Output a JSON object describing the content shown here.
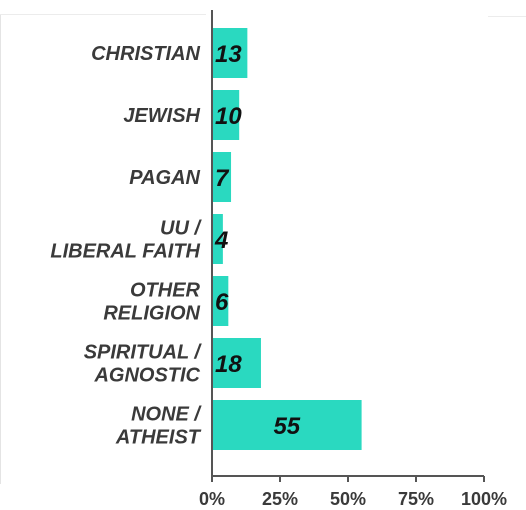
{
  "chart_data": {
    "type": "bar",
    "orientation": "horizontal",
    "categories": [
      [
        "CHRISTIAN"
      ],
      [
        "JEWISH"
      ],
      [
        "PAGAN"
      ],
      [
        "UU /",
        "LIBERAL FAITH"
      ],
      [
        "OTHER",
        "RELIGION"
      ],
      [
        "SPIRITUAL /",
        "AGNOSTIC"
      ],
      [
        "NONE /",
        "ATHEIST"
      ]
    ],
    "values": [
      13,
      10,
      7,
      4,
      6,
      18,
      55
    ],
    "data_labels": [
      "13",
      "10",
      "7",
      "4",
      "6",
      "18",
      "55"
    ],
    "xlim": [
      0,
      100
    ],
    "xticks": [
      0,
      25,
      50,
      75,
      100
    ],
    "xtick_labels": [
      "0%",
      "25%",
      "50%",
      "75%",
      "100%"
    ],
    "title": "",
    "xlabel": "",
    "ylabel": "",
    "grid": false,
    "legend": "none",
    "bar_color": "#2ad9c0",
    "text_color": "#3a3a3a",
    "value_text_color": "#111111"
  }
}
